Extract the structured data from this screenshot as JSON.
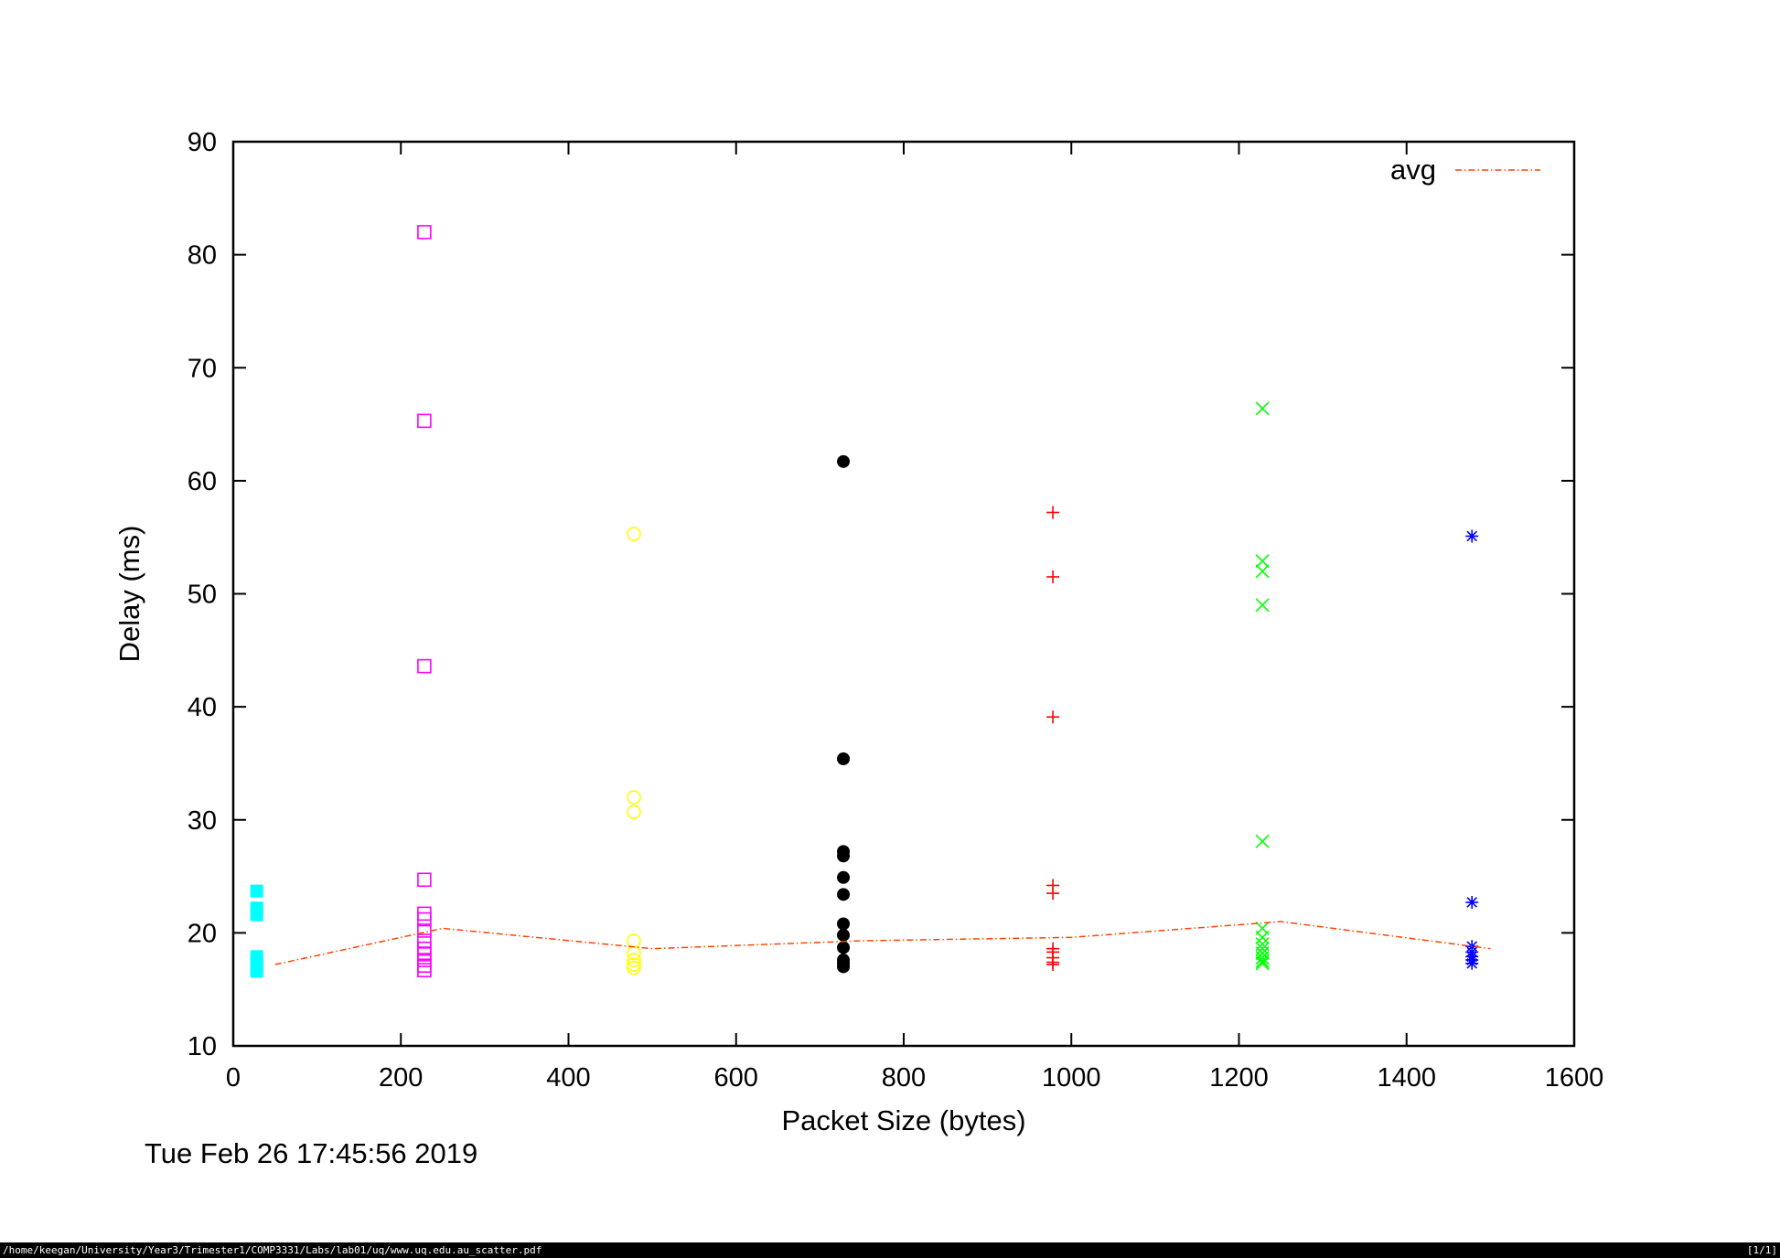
{
  "chart_data": {
    "type": "scatter",
    "xlabel": "Packet Size (bytes)",
    "ylabel": "Delay (ms)",
    "xlim": [
      0,
      1600
    ],
    "ylim": [
      10,
      90
    ],
    "xticks": [
      0,
      200,
      400,
      600,
      800,
      1000,
      1200,
      1400,
      1600
    ],
    "yticks": [
      10,
      20,
      30,
      40,
      50,
      60,
      70,
      80,
      90
    ],
    "grid": false,
    "legend": {
      "position": "top-right",
      "entries": [
        "avg"
      ]
    },
    "series": [
      {
        "marker": "filled-square",
        "color": "#00ffff",
        "x": 28,
        "y": [
          23.7,
          22.2,
          21.6,
          17.9,
          17.5,
          17.2,
          16.9,
          16.6
        ]
      },
      {
        "marker": "open-square",
        "color": "#ff00ff",
        "x": 228,
        "y": [
          82.0,
          65.3,
          43.6,
          24.7,
          21.7,
          21.2,
          20.2,
          19.3,
          18.6,
          18.1,
          17.6,
          17.1,
          16.7
        ]
      },
      {
        "marker": "open-circle",
        "color": "#ffff00",
        "x": 478,
        "y": [
          55.3,
          32.0,
          30.7,
          19.3,
          18.2,
          17.6,
          17.2,
          16.9
        ]
      },
      {
        "marker": "filled-circle",
        "color": "#000000",
        "x": 728,
        "y": [
          61.7,
          35.4,
          27.2,
          26.8,
          24.9,
          23.4,
          20.8,
          19.8,
          18.7,
          17.6,
          17.3,
          17.0
        ]
      },
      {
        "marker": "plus",
        "color": "#ff0000",
        "x": 978,
        "y": [
          57.2,
          51.5,
          39.1,
          24.2,
          23.5,
          18.6,
          18.3,
          17.8,
          17.4,
          17.2
        ]
      },
      {
        "marker": "cross",
        "color": "#00ff00",
        "x": 1228,
        "y": [
          66.4,
          52.9,
          52.0,
          49.0,
          28.1,
          20.4,
          19.6,
          19.0,
          18.6,
          18.2,
          17.8,
          17.5,
          17.3
        ]
      },
      {
        "marker": "star",
        "color": "#0000ff",
        "x": 1478,
        "y": [
          55.1,
          22.7,
          18.8,
          18.3,
          17.9,
          17.6,
          17.3
        ]
      },
      {
        "name": "avg",
        "marker": "line",
        "color": "#ff4500",
        "dash": "dash-dot",
        "x": [
          50,
          250,
          500,
          750,
          1000,
          1250,
          1500
        ],
        "y": [
          17.2,
          20.4,
          18.6,
          19.3,
          19.6,
          21.0,
          18.6
        ]
      }
    ]
  },
  "footer": {
    "timestamp": "Tue Feb 26 17:45:56 2019"
  },
  "statusbar": {
    "path": "/home/keegan/University/Year3/Trimester1/COMP3331/Labs/lab01/uq/www.uq.edu.au_scatter.pdf",
    "page": "[1/1]"
  }
}
